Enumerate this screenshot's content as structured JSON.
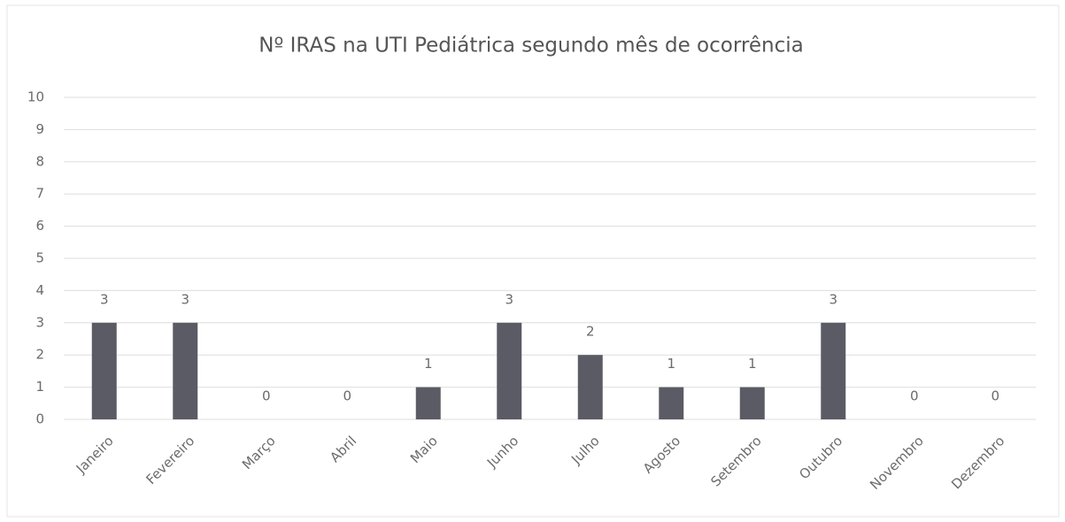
{
  "chart_data": {
    "type": "bar",
    "title": "Nº IRAS na UTI Pediátrica segundo mês de ocorrência",
    "categories": [
      "Janeiro",
      "Fevereiro",
      "Março",
      "Abril",
      "Maio",
      "Junho",
      "Julho",
      "Agosto",
      "Setembro",
      "Outubro",
      "Novembro",
      "Dezembro"
    ],
    "values": [
      3,
      3,
      0,
      0,
      1,
      3,
      2,
      1,
      1,
      3,
      0,
      0
    ],
    "color": "#5b5b66",
    "ylim": [
      0,
      10
    ],
    "yticks": [
      0,
      1,
      2,
      3,
      4,
      5,
      6,
      7,
      8,
      9,
      10
    ],
    "grid": true
  }
}
